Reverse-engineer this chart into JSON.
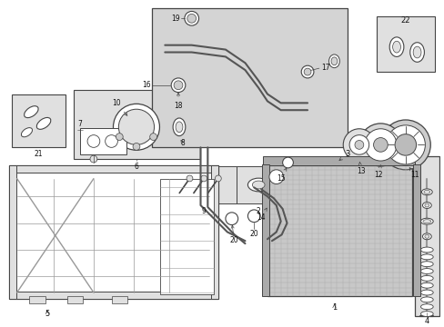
{
  "bg_color": "#ffffff",
  "line_color": "#444444",
  "text_color": "#111111",
  "fig_width": 4.89,
  "fig_height": 3.6,
  "dpi": 100,
  "lgray": "#e0e0e0",
  "dgray": "#999999",
  "mgray": "#cccccc",
  "shade": "#d4d4d4"
}
